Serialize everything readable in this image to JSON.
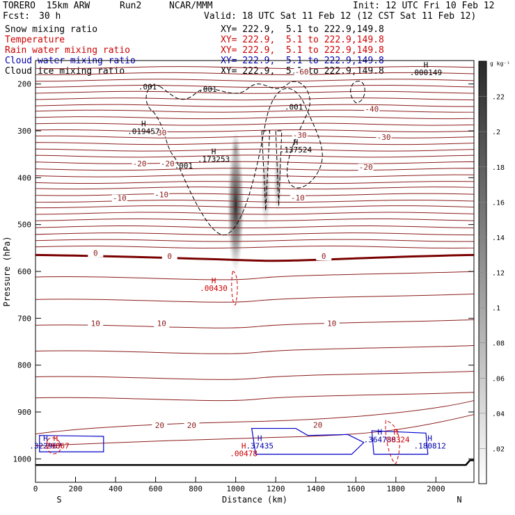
{
  "header": {
    "model": "TORERO  15km ARW",
    "run": "Run2",
    "org": "NCAR/MMM",
    "init": "Init: 12 UTC Fri 10 Feb 12",
    "fcst_label": "Fcst:",
    "fcst_value": "30 h",
    "valid": "Valid: 18 UTC Sat 11 Feb 12 (12 CST Sat 11 Feb 12)"
  },
  "legend": [
    {
      "field": "Snow mixing ratio",
      "xy": "XY= 222.9,  5.1 to 222.9,149.8",
      "color": "#000000"
    },
    {
      "field": "Temperature",
      "xy": "XY= 222.9,  5.1 to 222.9,149.8",
      "color": "#cc0000"
    },
    {
      "field": "Rain water mixing ratio",
      "xy": "XY= 222.9,  5.1 to 222.9,149.8",
      "color": "#cc0000"
    },
    {
      "field": "Cloud water mixing ratio",
      "xy": "XY= 222.9,  5.1 to 222.9,149.8",
      "color": "#0000aa"
    },
    {
      "field": "Cloud ice mixing ratio",
      "xy": "XY= 222.9,  5.1 to 222.9,149.8",
      "color": "#000000"
    }
  ],
  "chart_data": {
    "type": "contour",
    "xlabel": "Distance (km)",
    "ylabel": "Pressure (hPa)",
    "xlim": [
      0,
      2190
    ],
    "ylim": [
      1050,
      150
    ],
    "x_ticks": [
      0,
      200,
      400,
      600,
      800,
      1000,
      1200,
      1400,
      1600,
      1800,
      2000
    ],
    "y_ticks": [
      200,
      300,
      400,
      500,
      600,
      700,
      800,
      900,
      1000
    ],
    "x_left_label": "S",
    "x_right_label": "N",
    "colorbar": {
      "unit": "g kg⁻¹",
      "ticks": [
        ".02",
        ".04",
        ".06",
        ".08",
        ".1",
        ".12",
        ".14",
        ".16",
        ".18",
        ".2",
        ".22"
      ],
      "tick_values": [
        0.02,
        0.04,
        0.06,
        0.08,
        0.1,
        0.12,
        0.14,
        0.16,
        0.18,
        0.2,
        0.22
      ],
      "range": [
        0,
        0.24
      ]
    },
    "temperature_contour_labels": [
      {
        "text": "-60",
        "x": 1330,
        "p": 178
      },
      {
        "text": "-40",
        "x": 1680,
        "p": 258
      },
      {
        "text": "-30",
        "x": 1740,
        "p": 318
      },
      {
        "text": "-30",
        "x": 1320,
        "p": 313
      },
      {
        "text": "-30",
        "x": 620,
        "p": 308
      },
      {
        "text": "-20",
        "x": 1650,
        "p": 382
      },
      {
        "text": "-20",
        "x": 520,
        "p": 374
      },
      {
        "text": "-20",
        "x": 660,
        "p": 374
      },
      {
        "text": "-10",
        "x": 1310,
        "p": 447
      },
      {
        "text": "-10",
        "x": 420,
        "p": 448
      },
      {
        "text": "-10",
        "x": 630,
        "p": 440
      },
      {
        "text": "0",
        "x": 300,
        "p": 565
      },
      {
        "text": "0",
        "x": 670,
        "p": 572
      },
      {
        "text": "0",
        "x": 1440,
        "p": 572
      },
      {
        "text": "10",
        "x": 300,
        "p": 715
      },
      {
        "text": "10",
        "x": 630,
        "p": 715
      },
      {
        "text": "10",
        "x": 1480,
        "p": 715
      },
      {
        "text": "20",
        "x": 620,
        "p": 933
      },
      {
        "text": "20",
        "x": 780,
        "p": 933
      },
      {
        "text": "20",
        "x": 1410,
        "p": 932
      }
    ],
    "maxima": [
      {
        "mark": "H",
        "value": ".000149",
        "x": 1950,
        "p": 165,
        "color": "#000000"
      },
      {
        "mark": "H",
        "value": ".019457",
        "x": 540,
        "p": 290,
        "color": "#000000"
      },
      {
        "mark": "H",
        "value": ".173253",
        "x": 890,
        "p": 350,
        "color": "#000000"
      },
      {
        "mark": "H",
        "value": ".137524",
        "x": 1300,
        "p": 330,
        "color": "#000000"
      },
      {
        "mark": "H",
        "value": ".00430",
        "x": 890,
        "p": 625,
        "color": "#cc0000"
      },
      {
        "mark": "H",
        "value": ".00478",
        "x": 1040,
        "p": 978,
        "color": "#cc0000"
      },
      {
        "mark": "H",
        "value": ".37435",
        "x": 1120,
        "p": 962,
        "color": "#0000aa"
      },
      {
        "mark": "H",
        "value": ".364788",
        "x": 1720,
        "p": 948,
        "color": "#0000aa"
      },
      {
        "mark": "H",
        "value": ".30324",
        "x": 1800,
        "p": 948,
        "color": "#cc0000"
      },
      {
        "mark": "H",
        "value": ".180812",
        "x": 1970,
        "p": 962,
        "color": "#0000aa"
      },
      {
        "mark": "H",
        "value": ".322967",
        "x": 50,
        "p": 962,
        "color": "#0000aa"
      },
      {
        "mark": "H",
        "value": ".29067",
        "x": 100,
        "p": 962,
        "color": "#cc0000"
      }
    ],
    "ice_contour_labels": [
      {
        "text": ".001",
        "x": 560,
        "p": 212
      },
      {
        "text": ".001",
        "x": 860,
        "p": 217
      },
      {
        "text": ".001",
        "x": 1290,
        "p": 255
      },
      {
        "text": ".001",
        "x": 740,
        "p": 380
      }
    ]
  }
}
